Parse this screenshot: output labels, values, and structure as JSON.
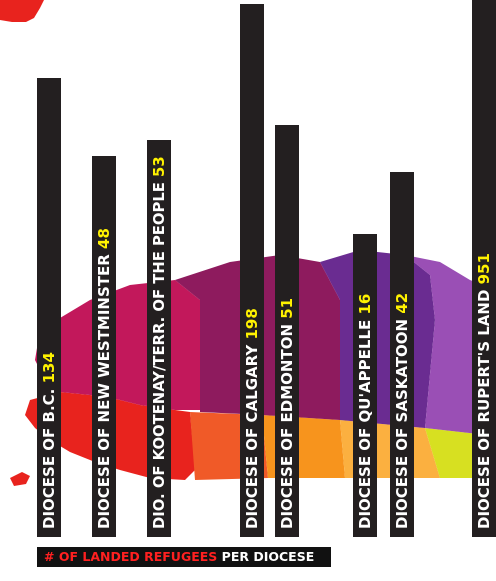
{
  "caption": {
    "hash": "#",
    "highlight": "OF LANDED REFUGEES",
    "rest": "PER DIOCESE"
  },
  "colors": {
    "bar": "#231f20",
    "label_text": "#ffffff",
    "value_text": "#fff200",
    "caption_highlight": "#ff2020",
    "map_regions": [
      "#e8231e",
      "#f05a28",
      "#f7941d",
      "#fbb040",
      "#c2185b",
      "#8e1b5e",
      "#6a2c91",
      "#9a4fb5",
      "#d7e021"
    ]
  },
  "chart_data": {
    "type": "bar",
    "orientation": "vertical",
    "categories": [
      "DIOCESE OF B.C.",
      "DIOCESE OF NEW WESTMINSTER",
      "DIO. OF KOOTENAY/TERR. OF THE PEOPLE",
      "DIOCESE OF CALGARY",
      "DIOCESE OF EDMONTON",
      "DIOCESE OF QU'APPELLE",
      "DIOCESE OF SASKATOON",
      "DIOCESE OF RUPERT'S LAND"
    ],
    "values": [
      134,
      48,
      53,
      198,
      51,
      16,
      42,
      951
    ],
    "value_labels": [
      "134",
      "48",
      "53",
      "198",
      "51",
      "16",
      "42",
      "951"
    ],
    "title": "",
    "xlabel": "",
    "ylabel": ""
  }
}
